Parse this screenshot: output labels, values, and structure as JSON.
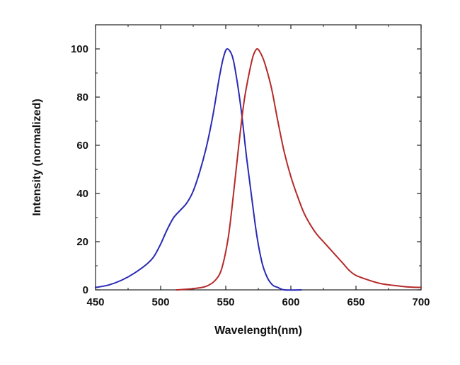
{
  "chart_data": {
    "type": "line",
    "title": "",
    "xlabel": "Wavelength(nm)",
    "ylabel": "Intensity (normalized)",
    "xlim": [
      450,
      700
    ],
    "ylim": [
      0,
      110
    ],
    "xticks": [
      450,
      500,
      550,
      600,
      650,
      700
    ],
    "yticks": [
      0,
      20,
      40,
      60,
      80,
      100
    ],
    "grid": false,
    "legend": "none",
    "series": [
      {
        "color": "#2a2ab4",
        "points": [
          [
            450,
            1
          ],
          [
            460,
            2
          ],
          [
            470,
            4
          ],
          [
            480,
            7
          ],
          [
            490,
            11
          ],
          [
            495,
            14
          ],
          [
            500,
            19
          ],
          [
            505,
            25
          ],
          [
            510,
            30
          ],
          [
            515,
            33
          ],
          [
            520,
            36
          ],
          [
            525,
            41
          ],
          [
            530,
            49
          ],
          [
            535,
            59
          ],
          [
            540,
            72
          ],
          [
            545,
            88
          ],
          [
            548,
            96
          ],
          [
            551,
            100
          ],
          [
            555,
            97
          ],
          [
            558,
            89
          ],
          [
            562,
            74
          ],
          [
            566,
            55
          ],
          [
            570,
            38
          ],
          [
            574,
            22
          ],
          [
            578,
            11
          ],
          [
            582,
            5
          ],
          [
            586,
            2
          ],
          [
            590,
            1
          ],
          [
            595,
            0
          ],
          [
            608,
            0
          ]
        ]
      },
      {
        "color": "#b52a2a",
        "points": [
          [
            512,
            0
          ],
          [
            525,
            0.5
          ],
          [
            535,
            1.5
          ],
          [
            542,
            4
          ],
          [
            547,
            9
          ],
          [
            552,
            22
          ],
          [
            556,
            40
          ],
          [
            560,
            60
          ],
          [
            564,
            78
          ],
          [
            568,
            90
          ],
          [
            571,
            97
          ],
          [
            574,
            100
          ],
          [
            577,
            98
          ],
          [
            580,
            94
          ],
          [
            585,
            84
          ],
          [
            590,
            70
          ],
          [
            595,
            57
          ],
          [
            600,
            47
          ],
          [
            605,
            39
          ],
          [
            610,
            32
          ],
          [
            615,
            27
          ],
          [
            620,
            23
          ],
          [
            625,
            20
          ],
          [
            630,
            17
          ],
          [
            635,
            14
          ],
          [
            640,
            11
          ],
          [
            645,
            8
          ],
          [
            650,
            6
          ],
          [
            660,
            4
          ],
          [
            670,
            2.5
          ],
          [
            680,
            1.8
          ],
          [
            690,
            1.2
          ],
          [
            700,
            1
          ]
        ]
      }
    ]
  }
}
